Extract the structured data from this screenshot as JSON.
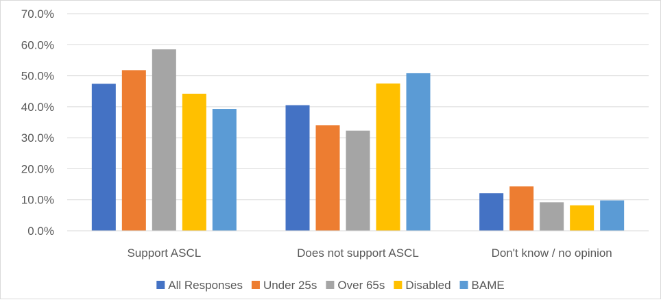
{
  "chart_data": {
    "type": "bar",
    "title": "",
    "xlabel": "",
    "ylabel": "",
    "categories": [
      "Support ASCL",
      "Does not support ASCL",
      "Don't know / no opinion"
    ],
    "series": [
      {
        "name": "All Responses",
        "color": "#4472C4",
        "values": [
          47.4,
          40.5,
          12.1
        ]
      },
      {
        "name": "Under 25s",
        "color": "#ED7D31",
        "values": [
          51.8,
          34.0,
          14.3
        ]
      },
      {
        "name": "Over 65s",
        "color": "#A5A5A5",
        "values": [
          58.5,
          32.3,
          9.2
        ]
      },
      {
        "name": "Disabled",
        "color": "#FFC000",
        "values": [
          44.2,
          47.5,
          8.2
        ]
      },
      {
        "name": "BAME",
        "color": "#5B9BD5",
        "values": [
          39.3,
          50.8,
          9.8
        ]
      }
    ],
    "ylim": [
      0,
      70
    ],
    "yticks": [
      "0.0%",
      "10.0%",
      "20.0%",
      "30.0%",
      "40.0%",
      "50.0%",
      "60.0%",
      "70.0%"
    ],
    "grid": true,
    "legend_position": "bottom"
  }
}
